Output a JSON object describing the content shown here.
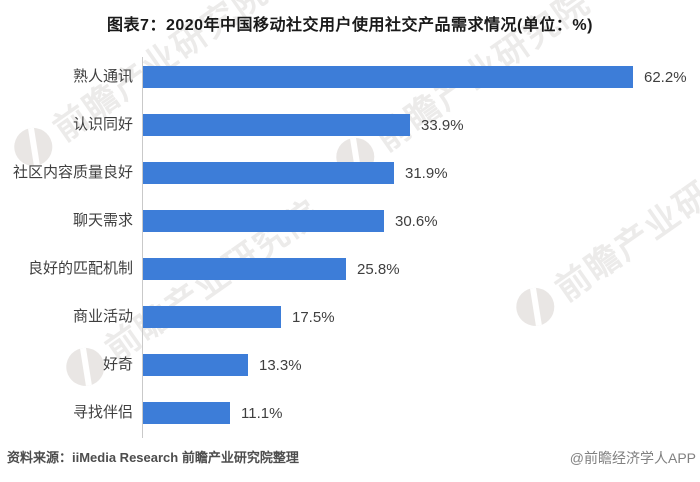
{
  "title": "图表7：2020年中国移动社交用户使用社交产品需求情况(单位：%)",
  "chart_data": {
    "type": "bar",
    "orientation": "horizontal",
    "title": "图表7：2020年中国移动社交用户使用社交产品需求情况(单位：%)",
    "unit": "%",
    "categories": [
      "熟人通讯",
      "认识同好",
      "社区内容质量良好",
      "聊天需求",
      "良好的匹配机制",
      "商业活动",
      "好奇",
      "寻找伴侣"
    ],
    "values": [
      62.2,
      33.9,
      31.9,
      30.6,
      25.8,
      17.5,
      13.3,
      11.1
    ],
    "value_labels": [
      "62.2%",
      "33.9%",
      "31.9%",
      "30.6%",
      "25.8%",
      "17.5%",
      "13.3%",
      "11.1%"
    ],
    "bar_color": "#3d7dd8",
    "xlim": [
      0,
      70
    ],
    "grid": false,
    "data_labels": true,
    "legend": null
  },
  "footer": {
    "source": "资料来源：iiMedia Research 前瞻产业研究院整理",
    "credit": "@前瞻经济学人APP"
  },
  "watermark": {
    "text": "前瞻产业研究院",
    "text_color": "#ecebea",
    "logo_color": "#e9e6e4"
  }
}
